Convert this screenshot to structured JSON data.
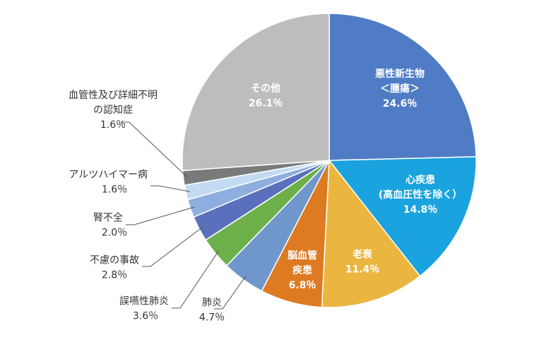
{
  "chart_data": {
    "type": "pie",
    "title": "",
    "start": "12 o'clock",
    "direction": "clockwise",
    "slices": [
      {
        "label_lines": [
          "悪性新生物",
          "＜腫瘍＞"
        ],
        "value_text": "24.6％",
        "value": 24.6,
        "color": "#4F7CC4"
      },
      {
        "label_lines": [
          "心疾患",
          "(高血圧性を除く）"
        ],
        "value_text": "14.8％",
        "value": 14.8,
        "color": "#1AA3DE"
      },
      {
        "label_lines": [
          "老衰"
        ],
        "value_text": "11.4％",
        "value": 11.4,
        "color": "#EBB63F"
      },
      {
        "label_lines": [
          "脳血管",
          "疾患"
        ],
        "value_text": "6.8％",
        "value": 6.8,
        "color": "#DD7A22"
      },
      {
        "label_lines": [
          "肺炎"
        ],
        "value_text": "4.7％",
        "value": 4.7,
        "color": "#7097CB"
      },
      {
        "label_lines": [
          "誤嚥性肺炎"
        ],
        "value_text": "3.6％",
        "value": 3.6,
        "color": "#6DB04A"
      },
      {
        "label_lines": [
          "不慮の事故"
        ],
        "value_text": "2.8％",
        "value": 2.8,
        "color": "#5A70BC"
      },
      {
        "label_lines": [
          "腎不全"
        ],
        "value_text": "2.0％",
        "value": 2.0,
        "color": "#8FAEE0"
      },
      {
        "label_lines": [
          "アルツハイマー病"
        ],
        "value_text": "1.6％",
        "value": 1.6,
        "color": "#C2DBF2"
      },
      {
        "label_lines": [
          "血管性及び詳細不明",
          "の認知症"
        ],
        "value_text": "1.6％",
        "value": 1.6,
        "color": "#7A7A7A"
      },
      {
        "label_lines": [
          "その他"
        ],
        "value_text": "26.1％",
        "value": 26.1,
        "color": "#BDBDBD"
      }
    ]
  }
}
